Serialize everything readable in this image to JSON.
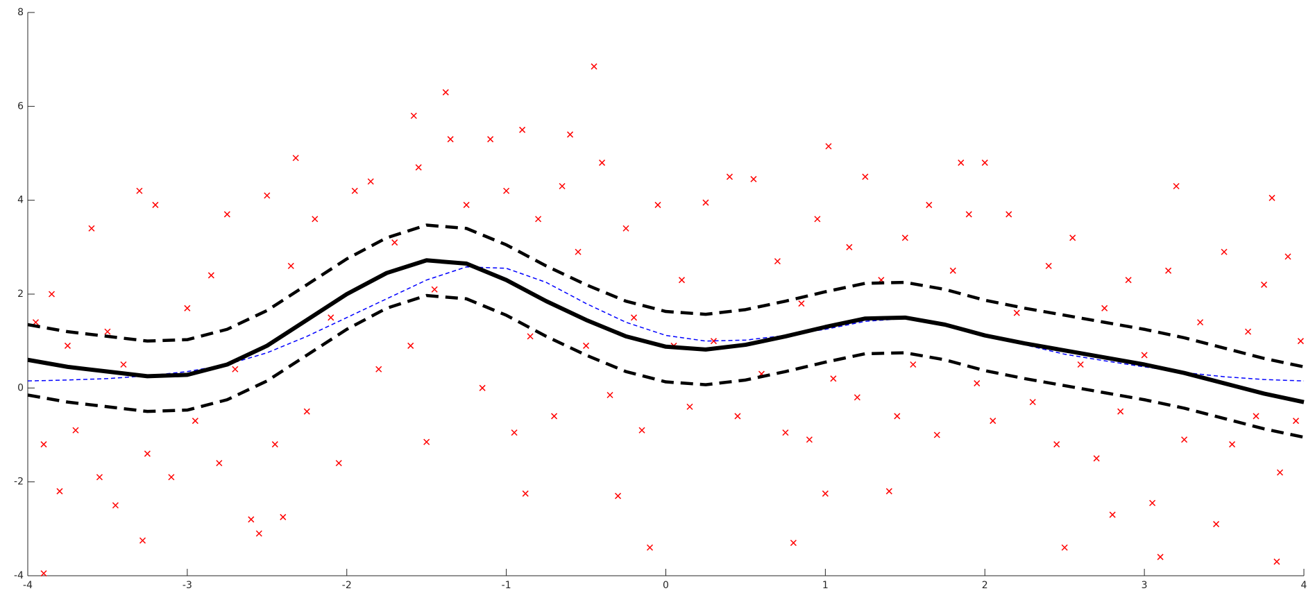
{
  "chart_data": {
    "type": "scatter",
    "xlim": [
      -4,
      4
    ],
    "ylim": [
      -4,
      8
    ],
    "xticks": [
      -4,
      -3,
      -2,
      -1,
      0,
      1,
      2,
      3,
      4
    ],
    "yticks": [
      -4,
      -2,
      0,
      2,
      4,
      6,
      8
    ],
    "series": [
      {
        "mode": "markers",
        "color": "#ff0000",
        "x": [
          -3.95,
          -3.9,
          -3.85,
          -3.8,
          -3.75,
          -3.7,
          -3.6,
          -3.55,
          -3.5,
          -3.45,
          -3.4,
          -3.3,
          -3.25,
          -3.2,
          -3.1,
          -3.0,
          -2.95,
          -2.85,
          -2.8,
          -2.75,
          -2.7,
          -2.6,
          -2.5,
          -2.45,
          -2.35,
          -2.25,
          -2.2,
          -2.1,
          -2.05,
          -1.95,
          -1.85,
          -1.8,
          -1.7,
          -1.6,
          -1.55,
          -1.5,
          -1.45,
          -1.35,
          -1.25,
          -1.15,
          -1.1,
          -1.0,
          -0.95,
          -0.85,
          -0.8,
          -0.7,
          -0.65,
          -0.55,
          -0.5,
          -0.4,
          -0.35,
          -0.25,
          -0.2,
          -0.15,
          -0.05,
          0.05,
          0.1,
          0.15,
          0.25,
          0.3,
          0.4,
          0.45,
          0.55,
          0.6,
          0.7,
          0.75,
          0.85,
          0.9,
          0.95,
          1.05,
          1.15,
          1.2,
          1.25,
          1.35,
          1.45,
          1.5,
          1.55,
          1.65,
          1.7,
          1.8,
          1.9,
          1.95,
          2.05,
          2.15,
          2.2,
          2.3,
          2.4,
          2.45,
          2.55,
          2.6,
          2.7,
          2.75,
          2.85,
          2.9,
          3.0,
          3.05,
          3.15,
          3.25,
          3.35,
          3.45,
          3.5,
          3.55,
          3.65,
          3.7,
          3.75,
          3.85,
          3.9,
          3.95,
          3.98,
          -0.45,
          -1.38,
          -1.58,
          -0.9,
          -0.6,
          1.02,
          -2.32,
          1.85,
          2.0,
          3.2,
          3.8,
          -3.9,
          -3.28,
          -0.1,
          0.8,
          2.5,
          3.83,
          3.1,
          -2.55,
          -2.4,
          -0.88,
          -0.3,
          1.0,
          1.4,
          2.8
        ],
        "values": [
          1.4,
          -1.2,
          2.0,
          -2.2,
          0.9,
          -0.9,
          3.4,
          -1.9,
          1.2,
          -2.5,
          0.5,
          4.2,
          -1.4,
          3.9,
          -1.9,
          1.7,
          -0.7,
          2.4,
          -1.6,
          3.7,
          0.4,
          -2.8,
          4.1,
          -1.2,
          2.6,
          -0.5,
          3.6,
          1.5,
          -1.6,
          4.2,
          4.4,
          0.4,
          3.1,
          0.9,
          4.7,
          -1.15,
          2.1,
          5.3,
          3.9,
          0.0,
          5.3,
          4.2,
          -0.95,
          1.1,
          3.6,
          -0.6,
          4.3,
          2.9,
          0.9,
          4.8,
          -0.15,
          3.4,
          1.5,
          -0.9,
          3.9,
          0.9,
          2.3,
          -0.4,
          3.95,
          1.0,
          4.5,
          -0.6,
          4.45,
          0.3,
          2.7,
          -0.95,
          1.8,
          -1.1,
          3.6,
          0.2,
          3.0,
          -0.2,
          4.5,
          2.3,
          -0.6,
          3.2,
          0.5,
          3.9,
          -1.0,
          2.5,
          3.7,
          0.1,
          -0.7,
          3.7,
          1.6,
          -0.3,
          2.6,
          -1.2,
          3.2,
          0.5,
          -1.5,
          1.7,
          -0.5,
          2.3,
          0.7,
          -2.45,
          2.5,
          -1.1,
          1.4,
          -2.9,
          2.9,
          -1.2,
          1.2,
          -0.6,
          2.2,
          -1.8,
          2.8,
          -0.7,
          1.0,
          6.85,
          6.3,
          5.8,
          5.5,
          5.4,
          5.15,
          4.9,
          4.8,
          4.8,
          4.3,
          4.05,
          -3.95,
          -3.25,
          -3.4,
          -3.3,
          -3.4,
          -3.7,
          -3.6,
          -3.1,
          -2.75,
          -2.25,
          -2.3,
          -2.25,
          -2.2,
          -2.7
        ]
      },
      {
        "mode": "line",
        "color": "#0000ff",
        "width": 1.5,
        "dash": "6 4",
        "x": [
          -4,
          -3.75,
          -3.5,
          -3.25,
          -3,
          -2.75,
          -2.5,
          -2.25,
          -2,
          -1.75,
          -1.5,
          -1.25,
          -1,
          -0.75,
          -0.5,
          -0.25,
          0,
          0.25,
          0.5,
          0.75,
          1,
          1.25,
          1.5,
          1.75,
          2,
          2.25,
          2.5,
          2.75,
          3,
          3.25,
          3.5,
          3.75,
          4
        ],
        "values": [
          0.15,
          0.17,
          0.2,
          0.26,
          0.35,
          0.5,
          0.75,
          1.1,
          1.5,
          1.9,
          2.3,
          2.58,
          2.55,
          2.25,
          1.8,
          1.4,
          1.12,
          1.0,
          1.02,
          1.12,
          1.25,
          1.42,
          1.48,
          1.35,
          1.15,
          0.92,
          0.72,
          0.58,
          0.45,
          0.33,
          0.24,
          0.18,
          0.15
        ]
      },
      {
        "mode": "line",
        "color": "#000000",
        "width": 6,
        "x": [
          -4,
          -3.75,
          -3.5,
          -3.25,
          -3,
          -2.75,
          -2.5,
          -2.25,
          -2,
          -1.75,
          -1.5,
          -1.25,
          -1,
          -0.75,
          -0.5,
          -0.25,
          0,
          0.25,
          0.5,
          0.75,
          1,
          1.25,
          1.5,
          1.75,
          2,
          2.25,
          2.5,
          2.75,
          3,
          3.25,
          3.5,
          3.75,
          4
        ],
        "values": [
          0.6,
          0.45,
          0.35,
          0.25,
          0.28,
          0.5,
          0.9,
          1.45,
          2.0,
          2.45,
          2.72,
          2.65,
          2.3,
          1.85,
          1.45,
          1.1,
          0.88,
          0.82,
          0.92,
          1.1,
          1.3,
          1.48,
          1.5,
          1.35,
          1.12,
          0.95,
          0.8,
          0.65,
          0.5,
          0.32,
          0.1,
          -0.12,
          -0.3
        ]
      },
      {
        "mode": "line",
        "color": "#000000",
        "width": 4.5,
        "dash": "18 10",
        "x": [
          -4,
          -3.75,
          -3.5,
          -3.25,
          -3,
          -2.75,
          -2.5,
          -2.25,
          -2,
          -1.75,
          -1.5,
          -1.25,
          -1,
          -0.75,
          -0.5,
          -0.25,
          0,
          0.25,
          0.5,
          0.75,
          1,
          1.25,
          1.5,
          1.75,
          2,
          2.25,
          2.5,
          2.75,
          3,
          3.25,
          3.5,
          3.75,
          4
        ],
        "values": [
          1.35,
          1.2,
          1.1,
          1.0,
          1.03,
          1.25,
          1.65,
          2.2,
          2.75,
          3.2,
          3.47,
          3.4,
          3.05,
          2.6,
          2.2,
          1.85,
          1.63,
          1.57,
          1.67,
          1.85,
          2.05,
          2.23,
          2.25,
          2.1,
          1.87,
          1.7,
          1.55,
          1.4,
          1.25,
          1.07,
          0.85,
          0.63,
          0.45
        ]
      },
      {
        "mode": "line",
        "color": "#000000",
        "width": 4.5,
        "dash": "18 10",
        "x": [
          -4,
          -3.75,
          -3.5,
          -3.25,
          -3,
          -2.75,
          -2.5,
          -2.25,
          -2,
          -1.75,
          -1.5,
          -1.25,
          -1,
          -0.75,
          -0.5,
          -0.25,
          0,
          0.25,
          0.5,
          0.75,
          1,
          1.25,
          1.5,
          1.75,
          2,
          2.25,
          2.5,
          2.75,
          3,
          3.25,
          3.5,
          3.75,
          4
        ],
        "values": [
          -0.15,
          -0.3,
          -0.4,
          -0.5,
          -0.47,
          -0.25,
          0.15,
          0.7,
          1.25,
          1.7,
          1.97,
          1.9,
          1.55,
          1.1,
          0.7,
          0.35,
          0.13,
          0.07,
          0.17,
          0.35,
          0.55,
          0.73,
          0.75,
          0.6,
          0.37,
          0.2,
          0.05,
          -0.1,
          -0.25,
          -0.43,
          -0.65,
          -0.87,
          -1.05
        ]
      }
    ]
  }
}
